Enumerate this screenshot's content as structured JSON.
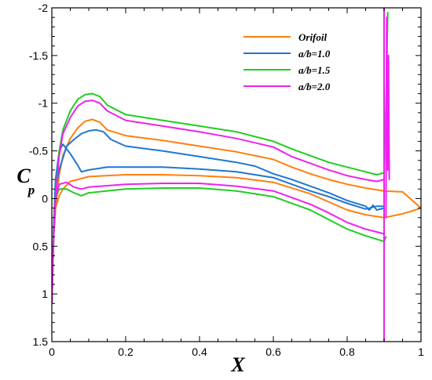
{
  "chart_data": {
    "type": "line",
    "title": "",
    "xlabel": "X",
    "ylabel_main": "C",
    "ylabel_sub": "p",
    "xlim": [
      0,
      1
    ],
    "ylim": [
      1.5,
      -2
    ],
    "y_inverted": true,
    "grid": false,
    "legend_position": "top-right",
    "x_ticks": [
      0,
      0.2,
      0.4,
      0.6,
      0.8,
      1
    ],
    "x_tick_labels": [
      "0",
      "0.2",
      "0.4",
      "0.6",
      "0.8",
      "1"
    ],
    "y_ticks": [
      -2,
      -1.5,
      -1,
      -0.5,
      0,
      0.5,
      1,
      1.5
    ],
    "y_tick_labels": [
      "-2",
      "-1.5",
      "-1",
      "-0.5",
      "0",
      "0.5",
      "1",
      "1.5"
    ],
    "series": [
      {
        "name": "Orifoil",
        "color": "#ff7f0e",
        "upper": [
          [
            0.0,
            1.1
          ],
          [
            0.005,
            0.4
          ],
          [
            0.01,
            0.1
          ],
          [
            0.02,
            -0.25
          ],
          [
            0.03,
            -0.45
          ],
          [
            0.05,
            -0.63
          ],
          [
            0.07,
            -0.74
          ],
          [
            0.09,
            -0.81
          ],
          [
            0.11,
            -0.83
          ],
          [
            0.13,
            -0.8
          ],
          [
            0.15,
            -0.72
          ],
          [
            0.2,
            -0.66
          ],
          [
            0.3,
            -0.61
          ],
          [
            0.4,
            -0.55
          ],
          [
            0.5,
            -0.49
          ],
          [
            0.6,
            -0.41
          ],
          [
            0.65,
            -0.33
          ],
          [
            0.7,
            -0.26
          ],
          [
            0.75,
            -0.2
          ],
          [
            0.8,
            -0.15
          ],
          [
            0.85,
            -0.11
          ],
          [
            0.9,
            -0.08
          ],
          [
            0.95,
            -0.07
          ],
          [
            1.0,
            0.1
          ]
        ],
        "lower": [
          [
            0.0,
            1.1
          ],
          [
            0.005,
            0.4
          ],
          [
            0.01,
            0.1
          ],
          [
            0.02,
            -0.03
          ],
          [
            0.03,
            -0.1
          ],
          [
            0.05,
            -0.18
          ],
          [
            0.07,
            -0.2
          ],
          [
            0.1,
            -0.23
          ],
          [
            0.2,
            -0.25
          ],
          [
            0.3,
            -0.25
          ],
          [
            0.4,
            -0.24
          ],
          [
            0.5,
            -0.22
          ],
          [
            0.6,
            -0.17
          ],
          [
            0.7,
            -0.05
          ],
          [
            0.8,
            0.12
          ],
          [
            0.85,
            0.17
          ],
          [
            0.9,
            0.2
          ],
          [
            0.95,
            0.16
          ],
          [
            1.0,
            0.1
          ]
        ]
      },
      {
        "name": "a/b=1.0",
        "color": "#1f77d0",
        "upper": [
          [
            0.0,
            1.1
          ],
          [
            0.005,
            0.3
          ],
          [
            0.01,
            -0.2
          ],
          [
            0.02,
            -0.5
          ],
          [
            0.03,
            -0.57
          ],
          [
            0.05,
            -0.47
          ],
          [
            0.07,
            -0.35
          ],
          [
            0.08,
            -0.28
          ],
          [
            0.1,
            -0.3
          ],
          [
            0.15,
            -0.33
          ],
          [
            0.2,
            -0.33
          ],
          [
            0.3,
            -0.33
          ],
          [
            0.4,
            -0.31
          ],
          [
            0.5,
            -0.28
          ],
          [
            0.6,
            -0.22
          ],
          [
            0.65,
            -0.15
          ],
          [
            0.7,
            -0.08
          ],
          [
            0.75,
            -0.02
          ],
          [
            0.8,
            0.05
          ],
          [
            0.85,
            0.11
          ],
          [
            0.88,
            0.08
          ],
          [
            0.9,
            0.08
          ]
        ],
        "lower": [
          [
            0.0,
            1.1
          ],
          [
            0.005,
            0.3
          ],
          [
            0.01,
            -0.1
          ],
          [
            0.02,
            -0.3
          ],
          [
            0.04,
            -0.55
          ],
          [
            0.06,
            -0.62
          ],
          [
            0.08,
            -0.68
          ],
          [
            0.1,
            -0.71
          ],
          [
            0.12,
            -0.72
          ],
          [
            0.14,
            -0.7
          ],
          [
            0.16,
            -0.62
          ],
          [
            0.2,
            -0.55
          ],
          [
            0.3,
            -0.5
          ],
          [
            0.4,
            -0.44
          ],
          [
            0.5,
            -0.38
          ],
          [
            0.55,
            -0.34
          ],
          [
            0.6,
            -0.26
          ],
          [
            0.65,
            -0.2
          ],
          [
            0.7,
            -0.13
          ],
          [
            0.75,
            -0.06
          ],
          [
            0.8,
            0.02
          ],
          [
            0.85,
            0.08
          ],
          [
            0.86,
            0.12
          ],
          [
            0.87,
            0.07
          ],
          [
            0.88,
            0.12
          ],
          [
            0.9,
            0.1
          ]
        ]
      },
      {
        "name": "a/b=1.5",
        "color": "#22cc22",
        "upper": [
          [
            0.0,
            1.1
          ],
          [
            0.005,
            0.4
          ],
          [
            0.01,
            0.0
          ],
          [
            0.02,
            -0.5
          ],
          [
            0.03,
            -0.72
          ],
          [
            0.05,
            -0.92
          ],
          [
            0.07,
            -1.04
          ],
          [
            0.09,
            -1.09
          ],
          [
            0.11,
            -1.1
          ],
          [
            0.13,
            -1.07
          ],
          [
            0.15,
            -0.98
          ],
          [
            0.2,
            -0.88
          ],
          [
            0.3,
            -0.82
          ],
          [
            0.4,
            -0.76
          ],
          [
            0.5,
            -0.7
          ],
          [
            0.6,
            -0.6
          ],
          [
            0.65,
            -0.52
          ],
          [
            0.7,
            -0.45
          ],
          [
            0.75,
            -0.38
          ],
          [
            0.8,
            -0.33
          ],
          [
            0.85,
            -0.28
          ],
          [
            0.88,
            -0.25
          ],
          [
            0.9,
            -0.27
          ],
          [
            0.905,
            -1.0
          ],
          [
            0.91,
            -1.95
          ]
        ],
        "lower": [
          [
            0.0,
            1.1
          ],
          [
            0.005,
            0.4
          ],
          [
            0.01,
            0.0
          ],
          [
            0.02,
            -0.1
          ],
          [
            0.04,
            -0.1
          ],
          [
            0.06,
            -0.06
          ],
          [
            0.08,
            -0.03
          ],
          [
            0.1,
            -0.06
          ],
          [
            0.2,
            -0.1
          ],
          [
            0.3,
            -0.11
          ],
          [
            0.4,
            -0.11
          ],
          [
            0.5,
            -0.08
          ],
          [
            0.6,
            -0.02
          ],
          [
            0.7,
            0.12
          ],
          [
            0.75,
            0.22
          ],
          [
            0.8,
            0.32
          ],
          [
            0.85,
            0.39
          ],
          [
            0.9,
            0.45
          ],
          [
            0.905,
            0.4
          ]
        ]
      },
      {
        "name": "a/b=2.0",
        "color": "#ee22ee",
        "upper": [
          [
            0.0,
            1.1
          ],
          [
            0.005,
            0.4
          ],
          [
            0.01,
            0.0
          ],
          [
            0.02,
            -0.45
          ],
          [
            0.03,
            -0.68
          ],
          [
            0.05,
            -0.85
          ],
          [
            0.07,
            -0.97
          ],
          [
            0.09,
            -1.02
          ],
          [
            0.11,
            -1.03
          ],
          [
            0.13,
            -1.0
          ],
          [
            0.15,
            -0.92
          ],
          [
            0.2,
            -0.82
          ],
          [
            0.3,
            -0.76
          ],
          [
            0.4,
            -0.7
          ],
          [
            0.5,
            -0.63
          ],
          [
            0.6,
            -0.54
          ],
          [
            0.65,
            -0.44
          ],
          [
            0.7,
            -0.37
          ],
          [
            0.75,
            -0.3
          ],
          [
            0.8,
            -0.24
          ],
          [
            0.85,
            -0.2
          ],
          [
            0.88,
            -0.18
          ],
          [
            0.9,
            -0.2
          ]
        ],
        "lower": [
          [
            0.0,
            1.1
          ],
          [
            0.005,
            0.4
          ],
          [
            0.01,
            0.0
          ],
          [
            0.02,
            -0.15
          ],
          [
            0.04,
            -0.17
          ],
          [
            0.06,
            -0.12
          ],
          [
            0.08,
            -0.1
          ],
          [
            0.1,
            -0.12
          ],
          [
            0.2,
            -0.15
          ],
          [
            0.3,
            -0.16
          ],
          [
            0.4,
            -0.16
          ],
          [
            0.5,
            -0.13
          ],
          [
            0.6,
            -0.08
          ],
          [
            0.7,
            0.06
          ],
          [
            0.75,
            0.15
          ],
          [
            0.8,
            0.25
          ],
          [
            0.85,
            0.32
          ],
          [
            0.9,
            0.37
          ]
        ],
        "spike": [
          [
            0.9,
            1.5
          ],
          [
            0.9,
            -2.0
          ]
        ],
        "spike2": [
          [
            0.905,
            0.2
          ],
          [
            0.907,
            -1.9
          ],
          [
            0.91,
            -0.3
          ],
          [
            0.912,
            -1.5
          ],
          [
            0.914,
            -0.2
          ]
        ]
      }
    ]
  }
}
